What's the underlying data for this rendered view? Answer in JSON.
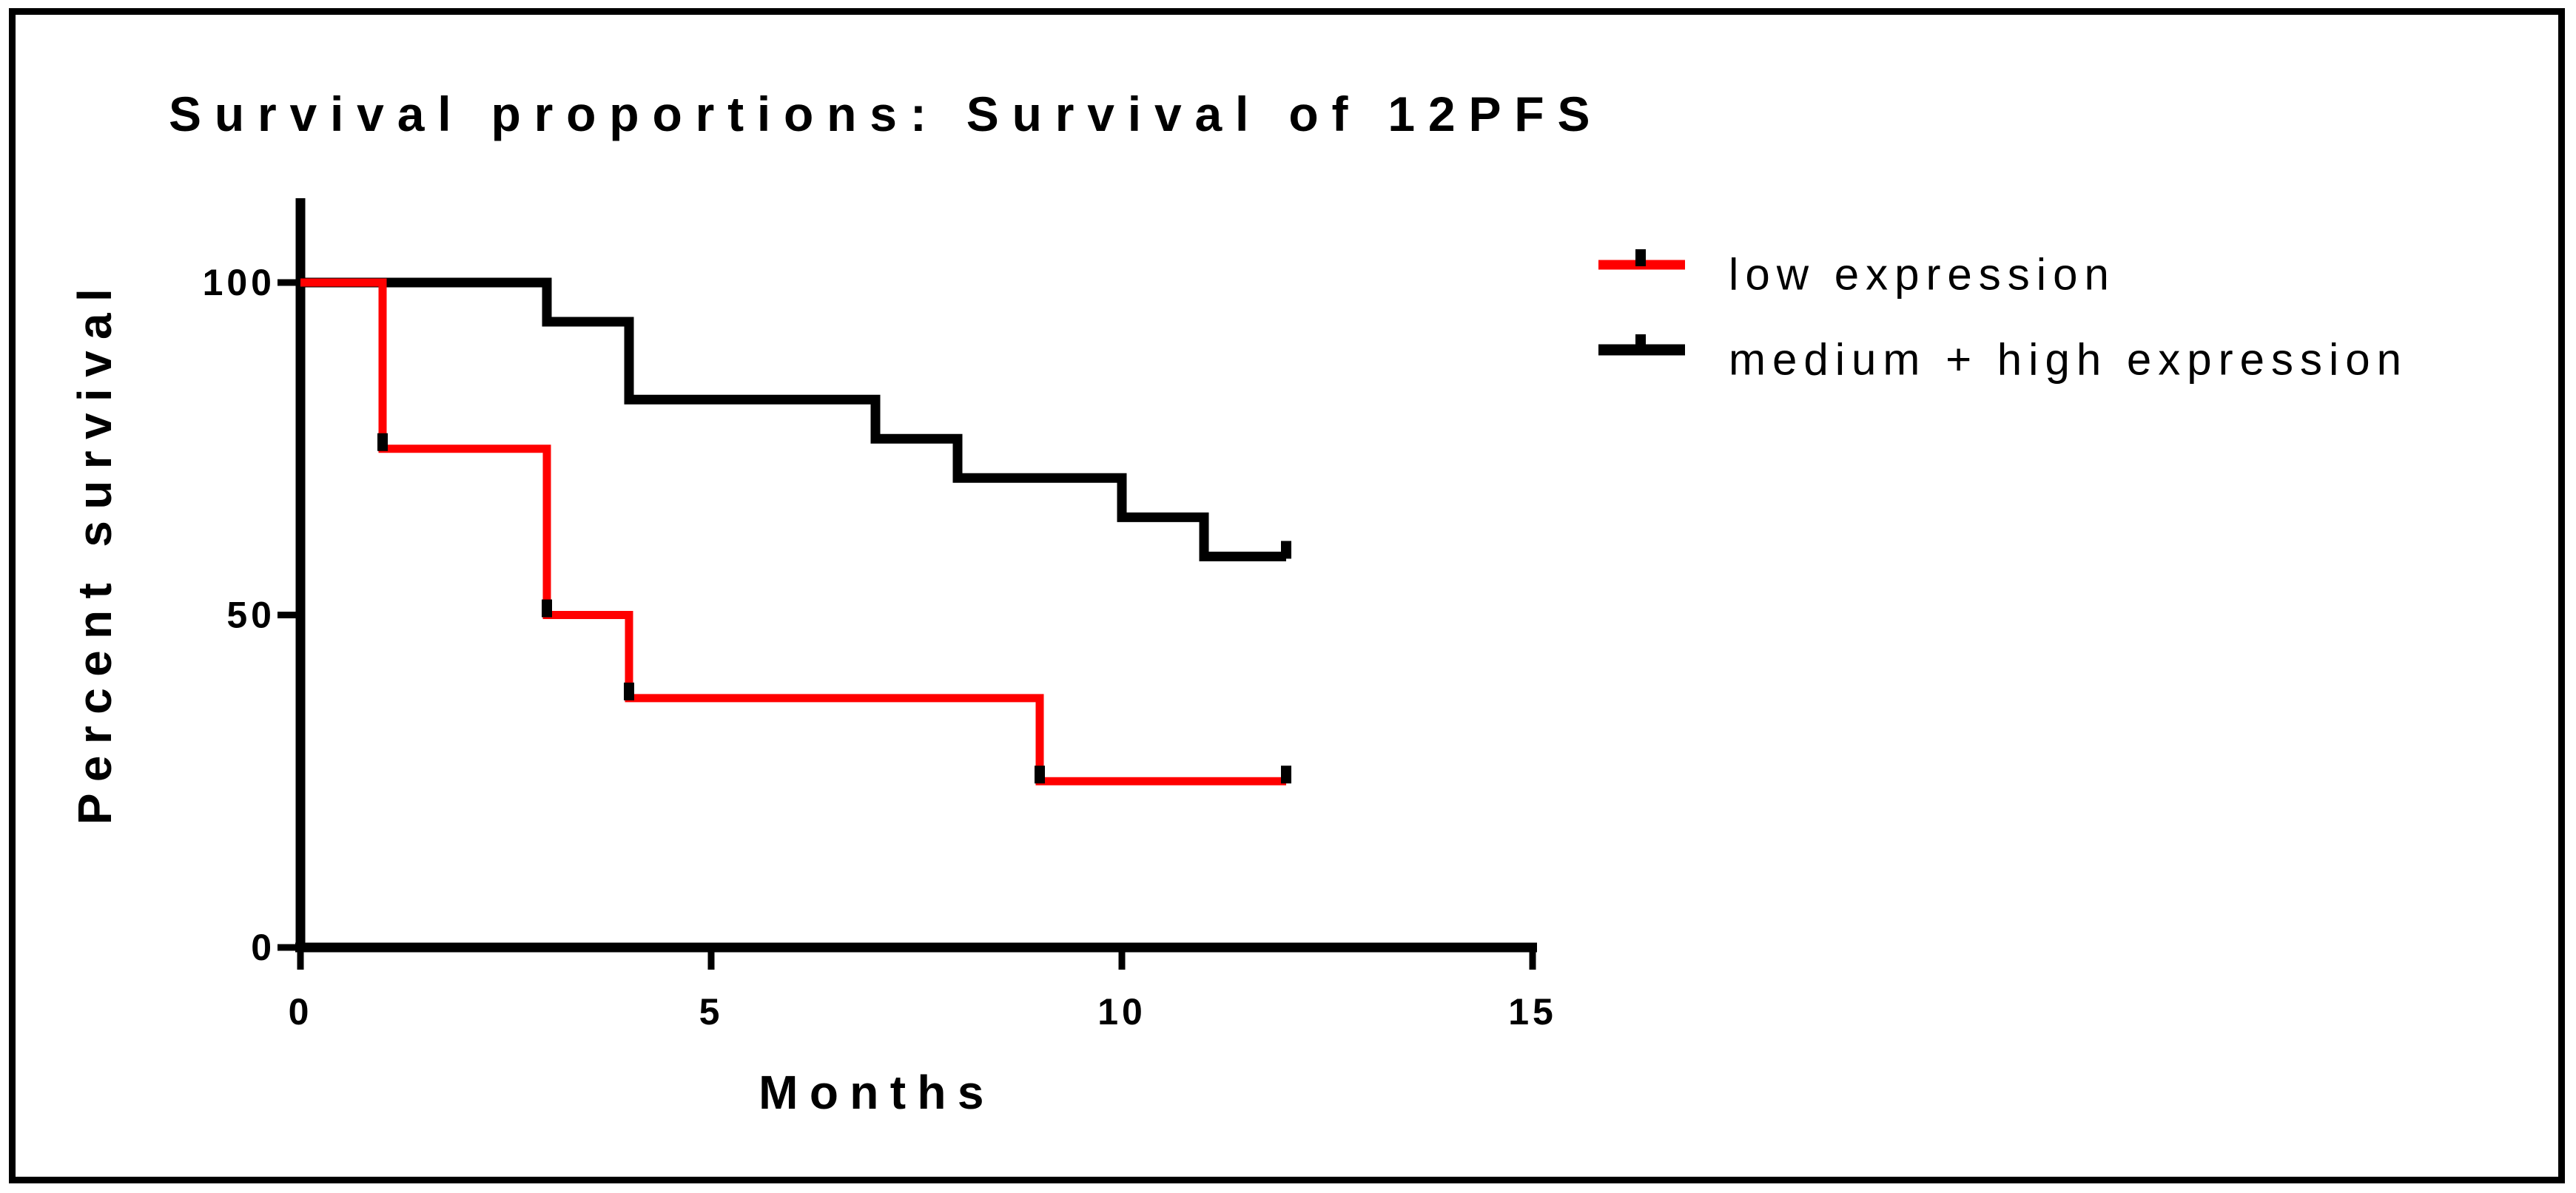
{
  "colors": {
    "low_expression": "#ff0000",
    "medium_high_expression": "#000000",
    "axis": "#000000",
    "censor_tick": "#000000",
    "background": "#ffffff",
    "border": "#000000"
  },
  "chart_data": {
    "type": "line",
    "subtype": "kaplan-meier-step",
    "title": "Survival proportions: Survival of 12PFS",
    "xlabel": "Months",
    "ylabel": "Percent survival",
    "x_ticks": [
      0,
      5,
      10,
      15
    ],
    "y_ticks": [
      0,
      50,
      100
    ],
    "xlim": [
      0,
      15
    ],
    "ylim": [
      0,
      100
    ],
    "grid": "off",
    "legend_position": "top-right",
    "series": [
      {
        "name": "low expression",
        "color": "#ff0000",
        "stroke_width": 11,
        "points": [
          [
            0,
            100
          ],
          [
            1,
            100
          ],
          [
            1,
            75
          ],
          [
            3,
            75
          ],
          [
            3,
            50
          ],
          [
            4,
            50
          ],
          [
            4,
            37.5
          ],
          [
            9,
            37.5
          ],
          [
            9,
            25
          ],
          [
            12,
            25
          ]
        ],
        "censor_ticks": [
          [
            1,
            75
          ],
          [
            3,
            50
          ],
          [
            4,
            37.5
          ],
          [
            9,
            25
          ],
          [
            12,
            25
          ]
        ]
      },
      {
        "name": "medium + high expression",
        "color": "#000000",
        "stroke_width": 13,
        "points": [
          [
            0,
            100
          ],
          [
            3,
            100
          ],
          [
            3,
            94.1
          ],
          [
            4,
            94.1
          ],
          [
            4,
            82.4
          ],
          [
            7,
            82.4
          ],
          [
            7,
            76.5
          ],
          [
            8,
            76.5
          ],
          [
            8,
            70.6
          ],
          [
            10,
            70.6
          ],
          [
            10,
            64.7
          ],
          [
            11,
            64.7
          ],
          [
            11,
            58.8
          ],
          [
            12,
            58.8
          ]
        ],
        "censor_ticks": [
          [
            12,
            58.8
          ]
        ]
      }
    ]
  }
}
